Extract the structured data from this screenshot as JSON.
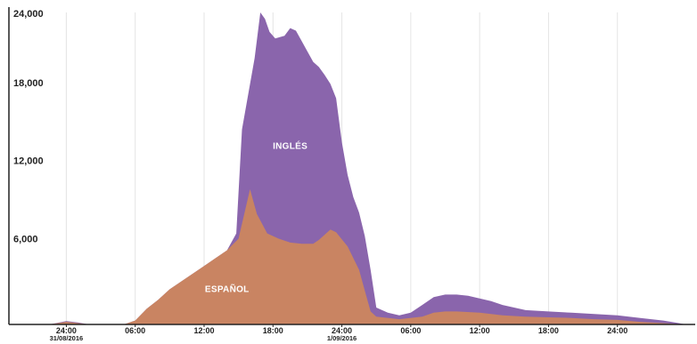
{
  "chart_data": {
    "type": "area",
    "stacked": true,
    "title": "",
    "xlabel": "",
    "ylabel": "",
    "ylim": [
      0,
      24000
    ],
    "xlim_hours": [
      -5,
      54
    ],
    "grid": "vertical",
    "y_ticks": [
      {
        "value": 6000,
        "label": "6,000"
      },
      {
        "value": 12000,
        "label": "12,000"
      },
      {
        "value": 18000,
        "label": "18,000"
      },
      {
        "value": 24000,
        "label": "24,000"
      }
    ],
    "x_ticks": [
      {
        "hour": 0,
        "label": "24:00",
        "date": "31/08/2016"
      },
      {
        "hour": 6,
        "label": "06:00",
        "date": ""
      },
      {
        "hour": 12,
        "label": "12:00",
        "date": ""
      },
      {
        "hour": 18,
        "label": "18:00",
        "date": ""
      },
      {
        "hour": 24,
        "label": "24:00",
        "date": "1/09/2016"
      },
      {
        "hour": 30,
        "label": "06:00",
        "date": ""
      },
      {
        "hour": 36,
        "label": "12:00",
        "date": ""
      },
      {
        "hour": 42,
        "label": "18:00",
        "date": ""
      },
      {
        "hour": 48,
        "label": "24:00",
        "date": ""
      }
    ],
    "series": [
      {
        "name": "ESPAÑOL",
        "color": "#C98462",
        "label_at": {
          "hour": 14,
          "value": 2500
        },
        "points": [
          [
            -5,
            0
          ],
          [
            -1.5,
            0
          ],
          [
            0,
            200
          ],
          [
            1,
            100
          ],
          [
            2,
            0
          ],
          [
            5,
            0
          ],
          [
            6,
            300
          ],
          [
            7,
            1200
          ],
          [
            8,
            1900
          ],
          [
            9,
            2700
          ],
          [
            10,
            3300
          ],
          [
            11,
            3900
          ],
          [
            12,
            4500
          ],
          [
            13,
            5100
          ],
          [
            14,
            5700
          ],
          [
            15,
            6600
          ],
          [
            16,
            10400
          ],
          [
            16.6,
            8500
          ],
          [
            17.5,
            7000
          ],
          [
            18.5,
            6600
          ],
          [
            19.5,
            6300
          ],
          [
            20.5,
            6200
          ],
          [
            21.5,
            6200
          ],
          [
            22,
            6500
          ],
          [
            23,
            7300
          ],
          [
            23.5,
            7100
          ],
          [
            24.5,
            6000
          ],
          [
            25.5,
            4200
          ],
          [
            26,
            2600
          ],
          [
            26.5,
            1000
          ],
          [
            27,
            600
          ],
          [
            29,
            400
          ],
          [
            31,
            600
          ],
          [
            32,
            900
          ],
          [
            33,
            1000
          ],
          [
            34,
            1000
          ],
          [
            36,
            900
          ],
          [
            38,
            700
          ],
          [
            40,
            600
          ],
          [
            42,
            550
          ],
          [
            44,
            500
          ],
          [
            46,
            400
          ],
          [
            48,
            350
          ],
          [
            50,
            200
          ],
          [
            52,
            100
          ],
          [
            54,
            0
          ]
        ]
      },
      {
        "name": "INGLÉS",
        "color": "#8A65AC",
        "label_at": {
          "hour": 19.5,
          "value": 13500
        },
        "points": [
          [
            -5,
            0
          ],
          [
            -1.5,
            0
          ],
          [
            0,
            250
          ],
          [
            1,
            150
          ],
          [
            2,
            0
          ],
          [
            5,
            0
          ],
          [
            6,
            300
          ],
          [
            7,
            1200
          ],
          [
            8,
            1900
          ],
          [
            9,
            2700
          ],
          [
            10,
            3300
          ],
          [
            11,
            3900
          ],
          [
            12,
            4500
          ],
          [
            13,
            5100
          ],
          [
            14,
            5700
          ],
          [
            14.8,
            7000
          ],
          [
            15.3,
            15000
          ],
          [
            16.4,
            20500
          ],
          [
            16.9,
            24000
          ],
          [
            17.3,
            23500
          ],
          [
            17.7,
            22500
          ],
          [
            18.2,
            22000
          ],
          [
            19,
            22200
          ],
          [
            19.5,
            22800
          ],
          [
            20,
            22600
          ],
          [
            20.5,
            21800
          ],
          [
            21,
            21000
          ],
          [
            21.5,
            20200
          ],
          [
            22,
            19800
          ],
          [
            22.5,
            19200
          ],
          [
            23,
            18500
          ],
          [
            23.5,
            17400
          ],
          [
            24,
            14000
          ],
          [
            24.5,
            11500
          ],
          [
            25,
            9800
          ],
          [
            25.5,
            8600
          ],
          [
            26,
            6800
          ],
          [
            26.5,
            4200
          ],
          [
            27,
            1300
          ],
          [
            28,
            900
          ],
          [
            29,
            700
          ],
          [
            30,
            900
          ],
          [
            31,
            1500
          ],
          [
            32,
            2100
          ],
          [
            33,
            2300
          ],
          [
            34,
            2300
          ],
          [
            35,
            2200
          ],
          [
            36,
            2000
          ],
          [
            37,
            1800
          ],
          [
            38,
            1500
          ],
          [
            39,
            1300
          ],
          [
            40,
            1100
          ],
          [
            42,
            1000
          ],
          [
            44,
            900
          ],
          [
            46,
            800
          ],
          [
            48,
            700
          ],
          [
            50,
            500
          ],
          [
            52,
            300
          ],
          [
            54,
            0
          ]
        ]
      }
    ]
  }
}
